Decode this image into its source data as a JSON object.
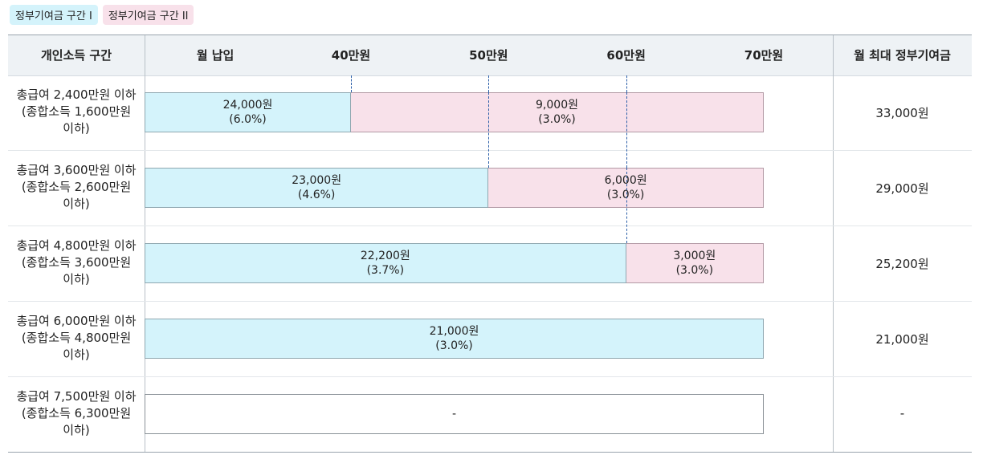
{
  "legend": [
    {
      "label": "정부기여금 구간 I",
      "color": "#d4f3fb"
    },
    {
      "label": "정부기여금 구간 II",
      "color": "#f8e1ea"
    }
  ],
  "header": {
    "income_col": "개인소득 구간",
    "payment_col": "월 납입",
    "max_col": "월 최대 정부기여금"
  },
  "chart_data": {
    "type": "bar",
    "x_ticks": [
      "40만원",
      "50만원",
      "60만원",
      "70만원"
    ],
    "xlim": [
      25,
      70
    ],
    "rows": [
      {
        "label_lines": [
          "총급여 2,400만원 이하",
          "(종합소득 1,600만원",
          "이하)"
        ],
        "segments": [
          {
            "band": 1,
            "from": 25,
            "to": 40,
            "amount": "24,000원",
            "rate": "(6.0%)"
          },
          {
            "band": 2,
            "from": 40,
            "to": 70,
            "amount": "9,000원",
            "rate": "(3.0%)"
          }
        ],
        "max": "33,000원"
      },
      {
        "label_lines": [
          "총급여 3,600만원 이하",
          "(종합소득 2,600만원",
          "이하)"
        ],
        "segments": [
          {
            "band": 1,
            "from": 25,
            "to": 50,
            "amount": "23,000원",
            "rate": "(4.6%)"
          },
          {
            "band": 2,
            "from": 50,
            "to": 70,
            "amount": "6,000원",
            "rate": "(3.0%)"
          }
        ],
        "max": "29,000원"
      },
      {
        "label_lines": [
          "총급여 4,800만원 이하",
          "(종합소득 3,600만원",
          "이하)"
        ],
        "segments": [
          {
            "band": 1,
            "from": 25,
            "to": 60,
            "amount": "22,200원",
            "rate": "(3.7%)"
          },
          {
            "band": 2,
            "from": 60,
            "to": 70,
            "amount": "3,000원",
            "rate": "(3.0%)"
          }
        ],
        "max": "25,200원"
      },
      {
        "label_lines": [
          "총급여 6,000만원 이하",
          "(종합소득 4,800만원",
          "이하)"
        ],
        "segments": [
          {
            "band": 1,
            "from": 25,
            "to": 70,
            "amount": "21,000원",
            "rate": "(3.0%)"
          }
        ],
        "max": "21,000원"
      },
      {
        "label_lines": [
          "총급여 7,500만원 이하",
          "(종합소득 6,300만원",
          "이하)"
        ],
        "segments": [
          {
            "band": 0,
            "from": 25,
            "to": 70,
            "amount": "-",
            "rate": ""
          }
        ],
        "max": "-"
      }
    ]
  }
}
